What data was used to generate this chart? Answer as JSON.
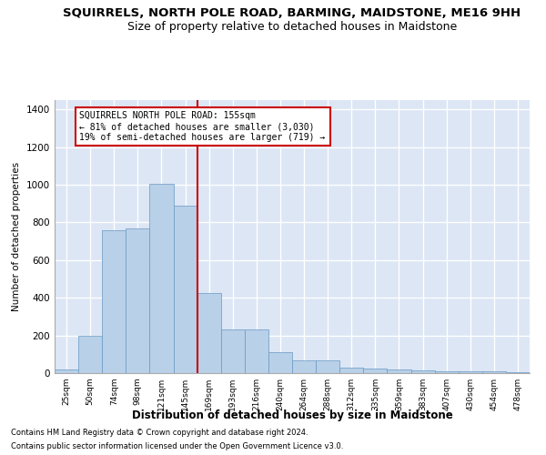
{
  "title": "SQUIRRELS, NORTH POLE ROAD, BARMING, MAIDSTONE, ME16 9HH",
  "subtitle": "Size of property relative to detached houses in Maidstone",
  "xlabel": "Distribution of detached houses by size in Maidstone",
  "ylabel": "Number of detached properties",
  "footer1": "Contains HM Land Registry data © Crown copyright and database right 2024.",
  "footer2": "Contains public sector information licensed under the Open Government Licence v3.0.",
  "bar_categories": [
    "25sqm",
    "50sqm",
    "74sqm",
    "98sqm",
    "121sqm",
    "145sqm",
    "169sqm",
    "193sqm",
    "216sqm",
    "240sqm",
    "264sqm",
    "288sqm",
    "312sqm",
    "335sqm",
    "359sqm",
    "383sqm",
    "407sqm",
    "430sqm",
    "454sqm",
    "478sqm"
  ],
  "bar_values": [
    20,
    200,
    760,
    770,
    1005,
    890,
    425,
    230,
    230,
    110,
    70,
    70,
    30,
    25,
    20,
    15,
    10,
    10,
    10,
    5
  ],
  "bar_color": "#b8d0e8",
  "bar_edge_color": "#6899c4",
  "annotation_text": "SQUIRRELS NORTH POLE ROAD: 155sqm\n← 81% of detached houses are smaller (3,030)\n19% of semi-detached houses are larger (719) →",
  "vline_x": 5.5,
  "vline_color": "#cc0000",
  "annotation_box_color": "#cc0000",
  "ylim": [
    0,
    1450
  ],
  "yticks": [
    0,
    200,
    400,
    600,
    800,
    1000,
    1200,
    1400
  ],
  "background_color": "#dce6f5",
  "grid_color": "#ffffff",
  "title_fontsize": 9.5,
  "subtitle_fontsize": 9
}
